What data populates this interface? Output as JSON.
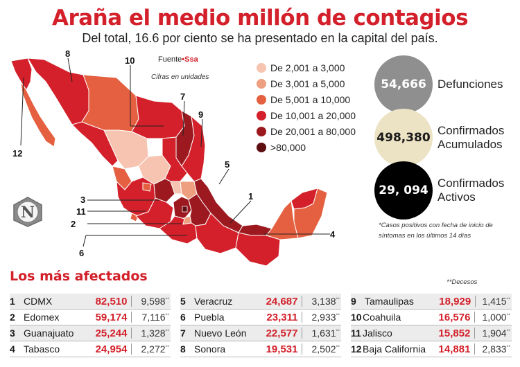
{
  "title": "Araña el medio millón de contagios",
  "subtitle": "Del total, 16.6 por ciento se ha presentado en la capital del país.",
  "source": {
    "prefix": "Fuente",
    "name": "Ssa"
  },
  "cifras": "Cifras en unidades",
  "legend": [
    {
      "label": "De 2,001 a 3,000",
      "color": "#f6c4b1"
    },
    {
      "label": "De 3,001 a 5,000",
      "color": "#ee9f80"
    },
    {
      "label": "De 5,001 a 10,000",
      "color": "#e56040"
    },
    {
      "label": "De 10,001 a 20,000",
      "color": "#d3202a"
    },
    {
      "label": "De 20,001 a 80,000",
      "color": "#9c1a1f"
    },
    {
      "label": ">80,000",
      "color": "#5c0e10"
    }
  ],
  "stats": [
    {
      "value": "54,666",
      "label": "Defunciones",
      "bg": "#8f8f8f",
      "fg": "#ffffff"
    },
    {
      "value": "498,380",
      "label": "Confirmados Acumulados",
      "bg": "#ece2c4",
      "fg": "#1a1a1a"
    },
    {
      "value": "29, 094",
      "label": "Confirmados Activos",
      "bg": "#000000",
      "fg": "#ffffff"
    }
  ],
  "note": "*Casos positivos con fecha de inicio de síntomas en los últimos 14 días",
  "badge_letter": "N",
  "map_labels": [
    "1",
    "2",
    "3",
    "4",
    "5",
    "6",
    "7",
    "8",
    "9",
    "10",
    "11",
    "12"
  ],
  "table_title": "Los más afectados",
  "deceso_note": "**Decesos",
  "deceso_mark": "**",
  "rows": [
    {
      "rank": "1",
      "state": "CDMX",
      "confirmed": "82,510",
      "deaths": "9,598"
    },
    {
      "rank": "2",
      "state": "Edomex",
      "confirmed": "59,174",
      "deaths": "7,116"
    },
    {
      "rank": "3",
      "state": "Guanajuato",
      "confirmed": "25,244",
      "deaths": "1,328"
    },
    {
      "rank": "4",
      "state": "Tabasco",
      "confirmed": "24,954",
      "deaths": "2,272"
    },
    {
      "rank": "5",
      "state": "Veracruz",
      "confirmed": "24,687",
      "deaths": "3,138"
    },
    {
      "rank": "6",
      "state": "Puebla",
      "confirmed": "23,311",
      "deaths": "2,933"
    },
    {
      "rank": "7",
      "state": "Nuevo León",
      "confirmed": "22,577",
      "deaths": "1,631"
    },
    {
      "rank": "8",
      "state": "Sonora",
      "confirmed": "19,531",
      "deaths": "2,502"
    },
    {
      "rank": "9",
      "state": "Tamaulipas",
      "confirmed": "18,929",
      "deaths": "1,415"
    },
    {
      "rank": "10",
      "state": "Coahuila",
      "confirmed": "16,576",
      "deaths": "1,000"
    },
    {
      "rank": "11",
      "state": "Jalisco",
      "confirmed": "15,852",
      "deaths": "1,904"
    },
    {
      "rank": "12",
      "state": "Baja California",
      "confirmed": "14,881",
      "deaths": "2,833"
    }
  ]
}
